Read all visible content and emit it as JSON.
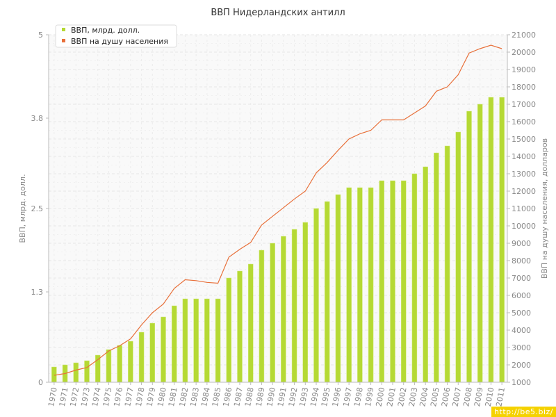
{
  "chart_data": {
    "type": "bar",
    "title": "ВВП Нидерландских антилл",
    "ylabel": "ВВП, млрд. долл.",
    "y2label": "ВВП на душу населения, долларов",
    "ylim": [
      0,
      5
    ],
    "y_ticks": [
      "0",
      "1.3",
      "2.5",
      "3.8",
      "5"
    ],
    "y2lim": [
      1000,
      21000
    ],
    "y2_ticks": [
      "1000",
      "2000",
      "3000",
      "4000",
      "5000",
      "6000",
      "7000",
      "8000",
      "9000",
      "10000",
      "11000",
      "12000",
      "13000",
      "14000",
      "15000",
      "16000",
      "17000",
      "18000",
      "19000",
      "20000",
      "21000"
    ],
    "grid": true,
    "legend_position": "top-left",
    "categories": [
      "1970",
      "1971",
      "1972",
      "1973",
      "1974",
      "1975",
      "1976",
      "1977",
      "1978",
      "1979",
      "1980",
      "1981",
      "1982",
      "1983",
      "1984",
      "1985",
      "1986",
      "1987",
      "1988",
      "1989",
      "1990",
      "1991",
      "1992",
      "1993",
      "1994",
      "1995",
      "1996",
      "1997",
      "1998",
      "1999",
      "2000",
      "2001",
      "2002",
      "2003",
      "2004",
      "2005",
      "2006",
      "2007",
      "2008",
      "2009",
      "2010",
      "2011"
    ],
    "series": [
      {
        "name": "ВВП, млрд. долл.",
        "type": "bar",
        "axis": "left",
        "color": "#b5d934",
        "values": [
          0.22,
          0.25,
          0.28,
          0.31,
          0.39,
          0.47,
          0.53,
          0.59,
          0.72,
          0.85,
          0.94,
          1.1,
          1.2,
          1.2,
          1.2,
          1.2,
          1.5,
          1.6,
          1.7,
          1.9,
          2.0,
          2.1,
          2.2,
          2.3,
          2.5,
          2.6,
          2.7,
          2.8,
          2.8,
          2.8,
          2.9,
          2.9,
          2.9,
          3.0,
          3.1,
          3.3,
          3.4,
          3.6,
          3.9,
          4.0,
          4.1,
          4.1
        ]
      },
      {
        "name": "ВВП на душу населения",
        "type": "line",
        "axis": "right",
        "color": "#e8703a",
        "values": [
          1400,
          1500,
          1700,
          1850,
          2300,
          2800,
          3100,
          3500,
          4300,
          5000,
          5500,
          6400,
          6900,
          6850,
          6750,
          6700,
          8200,
          8650,
          9050,
          10050,
          10550,
          11050,
          11550,
          12000,
          13050,
          13650,
          14350,
          15000,
          15300,
          15500,
          16100,
          16100,
          16100,
          16500,
          16900,
          17750,
          18000,
          18700,
          19950,
          20200,
          20400,
          20200
        ]
      }
    ]
  },
  "watermark": "http://be5.biz/"
}
